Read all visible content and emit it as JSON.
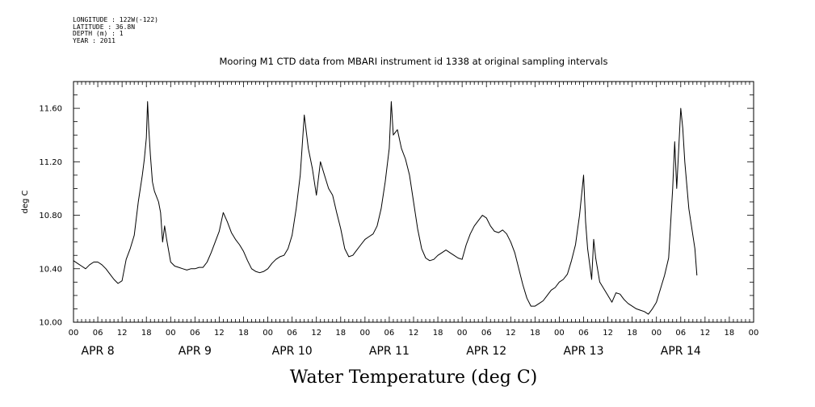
{
  "header": {
    "longitude": "LONGITUDE : 122W(-122)",
    "latitude": "LATITUDE : 36.8N",
    "depth": "DEPTH (m) : 1",
    "year": "YEAR : 2011"
  },
  "chart_data": {
    "type": "line",
    "title": "Mooring M1 CTD data from MBARI instrument id 1338 at original sampling intervals",
    "ylabel": "deg C",
    "bottom_title": "Water Temperature (deg C)",
    "ylim": [
      10.0,
      11.8
    ],
    "yticks": [
      "10.00",
      "10.40",
      "10.80",
      "11.20",
      "11.60"
    ],
    "ytick_values": [
      10.0,
      10.4,
      10.8,
      11.2,
      11.6
    ],
    "xlim_hours": [
      0,
      168
    ],
    "xtick_labels": [
      "00",
      "06",
      "12",
      "18",
      "00",
      "06",
      "12",
      "18",
      "00",
      "06",
      "12",
      "18",
      "00",
      "06",
      "12",
      "18",
      "00",
      "06",
      "12",
      "18",
      "00",
      "06",
      "12",
      "18",
      "00",
      "06",
      "12",
      "18",
      "00"
    ],
    "day_labels": [
      "APR  8",
      "APR  9",
      "APR 10",
      "APR 11",
      "APR 12",
      "APR 13",
      "APR 14"
    ],
    "series": [
      {
        "points": [
          [
            0,
            10.46
          ],
          [
            1,
            10.44
          ],
          [
            2,
            10.42
          ],
          [
            3,
            10.4
          ],
          [
            4,
            10.43
          ],
          [
            5,
            10.45
          ],
          [
            6,
            10.45
          ],
          [
            7,
            10.43
          ],
          [
            8,
            10.4
          ],
          [
            9,
            10.36
          ],
          [
            10,
            10.32
          ],
          [
            11,
            10.29
          ],
          [
            12,
            10.31
          ],
          [
            13,
            10.47
          ],
          [
            14,
            10.55
          ],
          [
            15,
            10.65
          ],
          [
            16,
            10.9
          ],
          [
            17,
            11.1
          ],
          [
            17.5,
            11.22
          ],
          [
            18,
            11.38
          ],
          [
            18.3,
            11.65
          ],
          [
            18.6,
            11.45
          ],
          [
            19,
            11.25
          ],
          [
            19.5,
            11.05
          ],
          [
            20,
            10.98
          ],
          [
            21,
            10.9
          ],
          [
            21.5,
            10.82
          ],
          [
            22,
            10.6
          ],
          [
            22.5,
            10.72
          ],
          [
            23,
            10.62
          ],
          [
            24,
            10.45
          ],
          [
            25,
            10.42
          ],
          [
            26,
            10.41
          ],
          [
            27,
            10.4
          ],
          [
            28,
            10.39
          ],
          [
            29,
            10.4
          ],
          [
            30,
            10.4
          ],
          [
            31,
            10.41
          ],
          [
            32,
            10.41
          ],
          [
            33,
            10.45
          ],
          [
            34,
            10.52
          ],
          [
            35,
            10.6
          ],
          [
            36,
            10.68
          ],
          [
            37,
            10.82
          ],
          [
            38,
            10.75
          ],
          [
            39,
            10.67
          ],
          [
            40,
            10.62
          ],
          [
            41,
            10.58
          ],
          [
            42,
            10.53
          ],
          [
            43,
            10.46
          ],
          [
            44,
            10.4
          ],
          [
            45,
            10.38
          ],
          [
            46,
            10.37
          ],
          [
            47,
            10.38
          ],
          [
            48,
            10.4
          ],
          [
            49,
            10.44
          ],
          [
            50,
            10.47
          ],
          [
            51,
            10.49
          ],
          [
            52,
            10.5
          ],
          [
            53,
            10.55
          ],
          [
            54,
            10.65
          ],
          [
            55,
            10.85
          ],
          [
            56,
            11.1
          ],
          [
            57,
            11.55
          ],
          [
            58,
            11.3
          ],
          [
            59,
            11.15
          ],
          [
            60,
            10.95
          ],
          [
            61,
            11.2
          ],
          [
            62,
            11.1
          ],
          [
            63,
            11.0
          ],
          [
            64,
            10.95
          ],
          [
            65,
            10.82
          ],
          [
            66,
            10.7
          ],
          [
            67,
            10.55
          ],
          [
            68,
            10.49
          ],
          [
            69,
            10.5
          ],
          [
            70,
            10.54
          ],
          [
            71,
            10.58
          ],
          [
            72,
            10.62
          ],
          [
            73,
            10.64
          ],
          [
            74,
            10.66
          ],
          [
            75,
            10.72
          ],
          [
            76,
            10.85
          ],
          [
            77,
            11.05
          ],
          [
            78,
            11.3
          ],
          [
            78.5,
            11.65
          ],
          [
            79,
            11.4
          ],
          [
            80,
            11.44
          ],
          [
            81,
            11.3
          ],
          [
            82,
            11.22
          ],
          [
            83,
            11.1
          ],
          [
            84,
            10.9
          ],
          [
            85,
            10.7
          ],
          [
            86,
            10.55
          ],
          [
            87,
            10.48
          ],
          [
            88,
            10.46
          ],
          [
            89,
            10.47
          ],
          [
            90,
            10.5
          ],
          [
            91,
            10.52
          ],
          [
            92,
            10.54
          ],
          [
            93,
            10.52
          ],
          [
            94,
            10.5
          ],
          [
            95,
            10.48
          ],
          [
            96,
            10.47
          ],
          [
            97,
            10.58
          ],
          [
            98,
            10.66
          ],
          [
            99,
            10.72
          ],
          [
            100,
            10.76
          ],
          [
            101,
            10.8
          ],
          [
            102,
            10.78
          ],
          [
            103,
            10.72
          ],
          [
            104,
            10.68
          ],
          [
            105,
            10.67
          ],
          [
            106,
            10.69
          ],
          [
            107,
            10.66
          ],
          [
            108,
            10.6
          ],
          [
            109,
            10.52
          ],
          [
            110,
            10.4
          ],
          [
            111,
            10.28
          ],
          [
            112,
            10.18
          ],
          [
            113,
            10.12
          ],
          [
            114,
            10.12
          ],
          [
            115,
            10.14
          ],
          [
            116,
            10.16
          ],
          [
            117,
            10.2
          ],
          [
            118,
            10.24
          ],
          [
            119,
            10.26
          ],
          [
            120,
            10.3
          ],
          [
            121,
            10.32
          ],
          [
            122,
            10.36
          ],
          [
            123,
            10.46
          ],
          [
            124,
            10.58
          ],
          [
            125,
            10.8
          ],
          [
            126,
            11.1
          ],
          [
            126.5,
            10.75
          ],
          [
            127,
            10.55
          ],
          [
            128,
            10.32
          ],
          [
            128.5,
            10.62
          ],
          [
            129,
            10.48
          ],
          [
            130,
            10.3
          ],
          [
            131,
            10.25
          ],
          [
            132,
            10.2
          ],
          [
            133,
            10.15
          ],
          [
            134,
            10.22
          ],
          [
            135,
            10.21
          ],
          [
            136,
            10.17
          ],
          [
            137,
            10.14
          ],
          [
            138,
            10.12
          ],
          [
            139,
            10.1
          ],
          [
            140,
            10.09
          ],
          [
            141,
            10.08
          ],
          [
            142,
            10.06
          ],
          [
            143,
            10.1
          ],
          [
            144,
            10.15
          ],
          [
            145,
            10.25
          ],
          [
            146,
            10.35
          ],
          [
            147,
            10.48
          ],
          [
            148,
            11.0
          ],
          [
            148.5,
            11.35
          ],
          [
            149,
            11.0
          ],
          [
            150,
            11.6
          ],
          [
            150.5,
            11.45
          ],
          [
            151,
            11.2
          ],
          [
            152,
            10.85
          ],
          [
            153,
            10.65
          ],
          [
            153.5,
            10.55
          ],
          [
            154,
            10.35
          ]
        ]
      }
    ]
  }
}
